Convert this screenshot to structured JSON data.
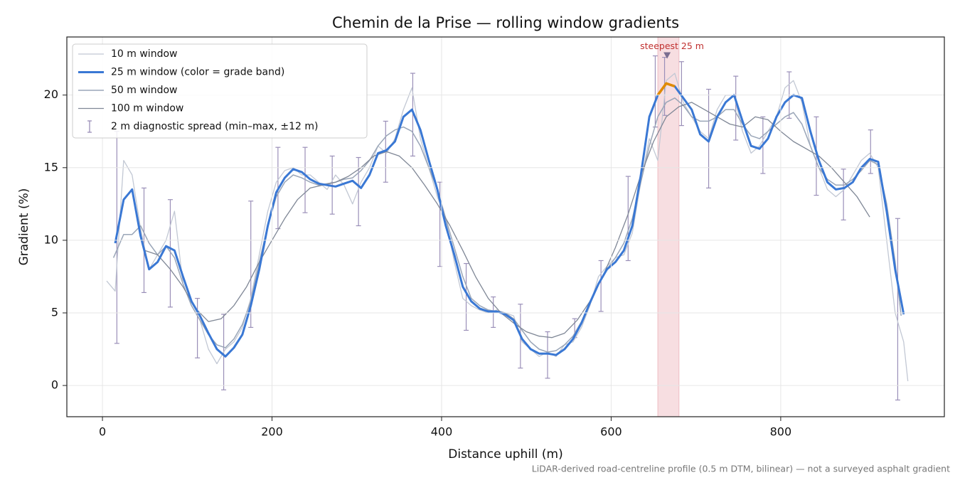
{
  "chart_data": {
    "type": "line",
    "title": "Chemin de la Prise — rolling window gradients",
    "x_label": "Distance uphill (m)",
    "y_label": "Gradient (%)",
    "footnote": "LiDAR-derived road-centreline profile (0.5 m DTM, bilinear) — not a surveyed asphalt gradient",
    "xlim": [
      -42,
      993
    ],
    "ylim": [
      -2.15,
      24
    ],
    "xticks": [
      0,
      200,
      400,
      600,
      800
    ],
    "yticks": [
      0,
      5,
      10,
      15,
      20
    ],
    "grid": true,
    "legend": "upper left",
    "highlight_span": [
      655,
      680
    ],
    "highlight_color": "#e8a0a8",
    "annotation": "steepest 25 m",
    "annotation_point": [
      666,
      22.7
    ],
    "grade_band_threshold": 20,
    "grade_band_color": "#e08a00",
    "series": [
      {
        "name": "10 m window",
        "color": "#c2c8d4",
        "width": 1.3,
        "x": [
          5,
          15,
          25,
          35,
          45,
          55,
          65,
          75,
          85,
          95,
          105,
          115,
          125,
          135,
          145,
          155,
          165,
          175,
          185,
          195,
          205,
          215,
          225,
          235,
          245,
          255,
          265,
          275,
          285,
          295,
          305,
          315,
          325,
          335,
          345,
          355,
          365,
          375,
          385,
          395,
          405,
          415,
          425,
          435,
          445,
          455,
          465,
          475,
          485,
          495,
          505,
          515,
          525,
          535,
          545,
          555,
          565,
          575,
          585,
          595,
          605,
          615,
          625,
          635,
          645,
          655,
          665,
          675,
          685,
          695,
          705,
          715,
          725,
          735,
          745,
          755,
          765,
          775,
          785,
          795,
          805,
          815,
          825,
          835,
          845,
          855,
          865,
          875,
          885,
          895,
          905,
          915,
          925,
          935,
          945,
          950
        ],
        "values": [
          7.2,
          6.5,
          15.5,
          14.5,
          10.8,
          8.0,
          9.0,
          10.0,
          12.0,
          7.0,
          5.5,
          4.5,
          2.5,
          1.5,
          2.5,
          3.0,
          4.0,
          6.0,
          9.0,
          12.0,
          14.0,
          14.8,
          15.0,
          14.5,
          14.5,
          14.0,
          13.5,
          14.5,
          13.8,
          12.5,
          14.0,
          15.0,
          16.5,
          16.0,
          17.0,
          19.0,
          20.5,
          17.0,
          15.0,
          13.0,
          11.5,
          8.5,
          6.0,
          5.5,
          5.2,
          5.0,
          5.2,
          5.0,
          4.8,
          3.0,
          2.5,
          2.0,
          2.3,
          2.0,
          2.8,
          3.0,
          4.0,
          5.5,
          7.5,
          8.2,
          8.8,
          9.0,
          10.5,
          14.0,
          17.0,
          15.5,
          21.0,
          21.5,
          19.5,
          18.5,
          17.5,
          17.0,
          19.0,
          20.0,
          20.0,
          17.5,
          16.0,
          16.5,
          17.5,
          18.5,
          20.5,
          21.0,
          19.5,
          16.5,
          15.0,
          13.5,
          13.0,
          13.5,
          14.5,
          15.5,
          16.0,
          15.0,
          10.0,
          5.0,
          3.0,
          0.3
        ]
      },
      {
        "name": "25 m window (color = grade band)",
        "color": "#3a78d4",
        "width": 3,
        "x": [
          15,
          25,
          35,
          45,
          55,
          65,
          75,
          85,
          95,
          105,
          115,
          125,
          135,
          145,
          155,
          165,
          175,
          185,
          195,
          205,
          215,
          225,
          235,
          245,
          255,
          265,
          275,
          285,
          295,
          305,
          315,
          325,
          335,
          345,
          355,
          365,
          375,
          385,
          395,
          405,
          415,
          425,
          435,
          445,
          455,
          465,
          475,
          485,
          495,
          505,
          515,
          525,
          535,
          545,
          555,
          565,
          575,
          585,
          595,
          605,
          615,
          625,
          635,
          645,
          655,
          665,
          675,
          685,
          695,
          705,
          715,
          725,
          735,
          745,
          755,
          765,
          775,
          785,
          795,
          805,
          815,
          825,
          835,
          845,
          855,
          865,
          875,
          885,
          895,
          905,
          915,
          925,
          935,
          945
        ],
        "values": [
          9.8,
          12.8,
          13.5,
          10.3,
          8.0,
          8.5,
          9.6,
          9.3,
          7.5,
          5.8,
          4.8,
          3.6,
          2.5,
          2.0,
          2.6,
          3.5,
          5.5,
          8.0,
          11.0,
          13.3,
          14.3,
          14.9,
          14.7,
          14.2,
          13.9,
          13.8,
          13.7,
          13.9,
          14.1,
          13.6,
          14.5,
          16.0,
          16.2,
          16.8,
          18.5,
          19.0,
          17.6,
          15.5,
          13.5,
          11.0,
          9.0,
          6.8,
          5.8,
          5.3,
          5.1,
          5.1,
          4.9,
          4.5,
          3.2,
          2.5,
          2.2,
          2.2,
          2.1,
          2.5,
          3.2,
          4.3,
          5.7,
          7.0,
          8.0,
          8.5,
          9.3,
          11.0,
          14.5,
          18.5,
          20.0,
          20.8,
          20.6,
          19.8,
          19.0,
          17.3,
          16.8,
          18.5,
          19.5,
          20.0,
          18.2,
          16.5,
          16.3,
          17.0,
          18.5,
          19.5,
          20.0,
          19.8,
          17.5,
          15.5,
          14.0,
          13.5,
          13.6,
          14.0,
          15.0,
          15.6,
          15.4,
          12.0,
          8.0,
          4.9
        ]
      },
      {
        "name": "50 m window",
        "color": "#9aa6b8",
        "width": 1.5,
        "x": [
          13,
          25,
          35,
          45,
          55,
          65,
          75,
          85,
          95,
          105,
          115,
          125,
          135,
          145,
          155,
          165,
          175,
          185,
          195,
          205,
          215,
          225,
          235,
          245,
          255,
          265,
          275,
          285,
          295,
          305,
          315,
          325,
          335,
          345,
          355,
          365,
          375,
          385,
          395,
          405,
          415,
          425,
          435,
          445,
          455,
          465,
          475,
          485,
          495,
          505,
          515,
          525,
          535,
          545,
          555,
          565,
          575,
          585,
          595,
          605,
          615,
          625,
          635,
          645,
          655,
          665,
          675,
          685,
          695,
          705,
          715,
          725,
          735,
          745,
          755,
          765,
          775,
          785,
          795,
          805,
          815,
          825,
          835,
          845,
          855,
          865,
          875,
          885,
          895,
          905,
          915,
          925,
          935,
          942
        ],
        "values": [
          8.8,
          10.4,
          10.4,
          11.0,
          9.8,
          9.0,
          9.6,
          8.8,
          7.0,
          5.5,
          4.5,
          3.5,
          2.8,
          2.6,
          3.2,
          4.2,
          5.8,
          8.5,
          11.0,
          13.0,
          14.0,
          14.5,
          14.3,
          14.0,
          13.8,
          13.9,
          14.0,
          14.2,
          14.3,
          14.8,
          15.5,
          16.5,
          17.2,
          17.6,
          17.8,
          17.5,
          16.5,
          15.0,
          13.5,
          11.5,
          9.5,
          7.5,
          6.0,
          5.5,
          5.2,
          5.1,
          5.0,
          4.6,
          3.8,
          3.0,
          2.5,
          2.3,
          2.4,
          2.8,
          3.4,
          4.4,
          5.6,
          7.0,
          8.0,
          8.8,
          9.8,
          11.5,
          14.0,
          16.5,
          18.5,
          19.5,
          19.8,
          19.3,
          18.5,
          18.2,
          18.2,
          18.5,
          19.0,
          19.0,
          18.0,
          17.2,
          17.0,
          17.5,
          18.0,
          18.5,
          18.8,
          18.0,
          16.5,
          15.0,
          14.2,
          13.8,
          13.8,
          14.2,
          14.8,
          15.5,
          15.2,
          12.5,
          8.5,
          4.8
        ]
      },
      {
        "name": "100 m window",
        "color": "#7f8796",
        "width": 1.3,
        "x": [
          50,
          65,
          80,
          95,
          110,
          125,
          140,
          155,
          170,
          185,
          200,
          215,
          230,
          245,
          260,
          275,
          290,
          305,
          320,
          335,
          350,
          365,
          380,
          395,
          410,
          425,
          440,
          455,
          470,
          485,
          500,
          515,
          530,
          545,
          560,
          575,
          590,
          605,
          620,
          635,
          650,
          665,
          680,
          695,
          710,
          725,
          740,
          755,
          770,
          785,
          800,
          815,
          830,
          845,
          860,
          875,
          890,
          905
        ],
        "values": [
          9.3,
          9.0,
          8.0,
          6.8,
          5.3,
          4.4,
          4.6,
          5.5,
          6.8,
          8.5,
          10.0,
          11.5,
          12.8,
          13.6,
          13.8,
          14.0,
          14.4,
          15.0,
          15.8,
          16.1,
          15.8,
          15.0,
          13.8,
          12.5,
          11.0,
          9.3,
          7.5,
          6.0,
          5.0,
          4.3,
          3.7,
          3.4,
          3.3,
          3.6,
          4.5,
          5.8,
          7.5,
          9.5,
          11.8,
          14.5,
          16.8,
          18.5,
          19.2,
          19.5,
          19.0,
          18.5,
          18.0,
          17.8,
          18.5,
          18.3,
          17.5,
          16.8,
          16.3,
          15.8,
          15.0,
          14.0,
          13.0,
          11.6
        ]
      }
    ],
    "error_bars": {
      "name": "2 m diagnostic spread (min–max, ±12 m)",
      "color": "#9a8fb8",
      "x": [
        17,
        49,
        80,
        112,
        143,
        175,
        207,
        239,
        271,
        302,
        334,
        366,
        398,
        429,
        461,
        493,
        525,
        557,
        588,
        620,
        652,
        663,
        683,
        715,
        747,
        779,
        810,
        842,
        874,
        906,
        938
      ],
      "low": [
        2.9,
        6.4,
        5.4,
        1.9,
        -0.3,
        4.0,
        10.8,
        11.9,
        11.8,
        11.0,
        14.0,
        15.8,
        8.2,
        3.8,
        4.0,
        1.2,
        0.5,
        3.3,
        5.1,
        8.6,
        17.8,
        18.6,
        17.9,
        13.6,
        16.9,
        14.6,
        18.4,
        13.1,
        11.4,
        14.6,
        -1.0
      ],
      "high": [
        17.5,
        13.6,
        12.8,
        6.0,
        4.9,
        12.7,
        16.4,
        16.4,
        15.8,
        15.7,
        18.2,
        21.5,
        14.0,
        8.4,
        6.1,
        5.6,
        3.7,
        4.6,
        8.6,
        14.4,
        22.7,
        22.6,
        22.3,
        20.4,
        21.3,
        18.5,
        21.6,
        18.5,
        14.9,
        17.6,
        11.5
      ]
    }
  }
}
